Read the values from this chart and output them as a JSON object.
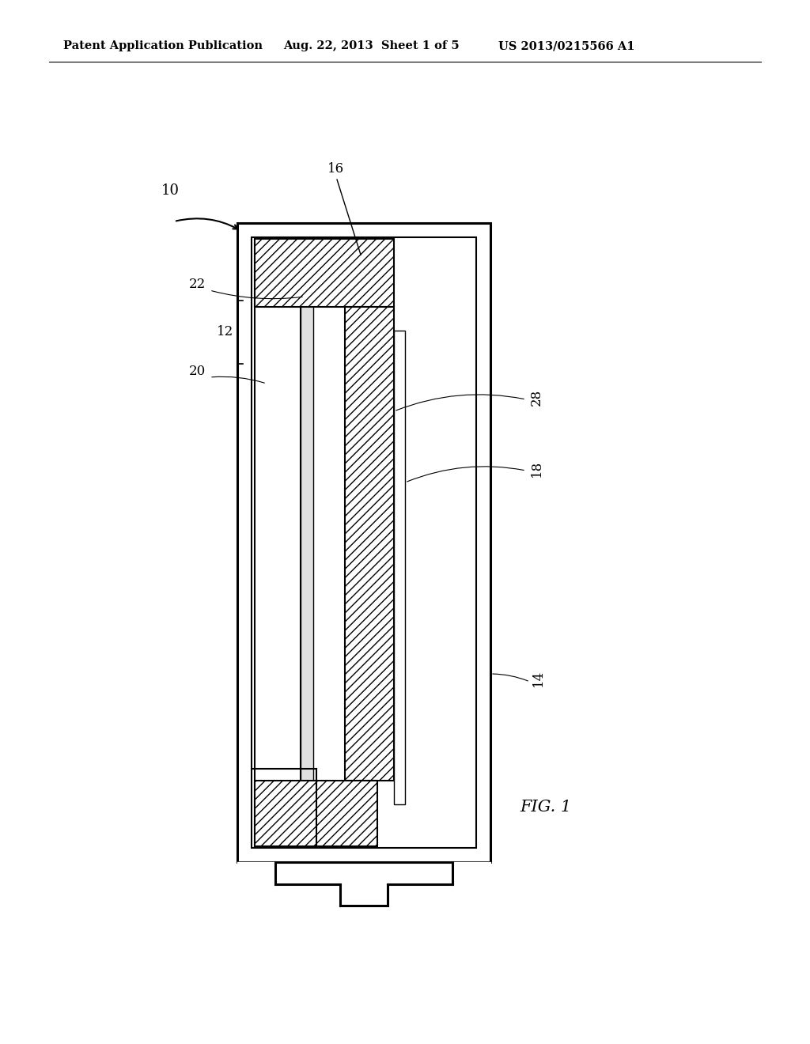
{
  "bg_color": "#ffffff",
  "line_color": "#000000",
  "header_left": "Patent Application Publication",
  "header_mid": "Aug. 22, 2013  Sheet 1 of 5",
  "header_right": "US 2013/0215566 A1",
  "fig_label": "FIG. 1",
  "label_10": "10",
  "label_12": "12",
  "label_14": "14",
  "label_16": "16",
  "label_18": "18",
  "label_20": "20",
  "label_22": "22",
  "label_28": "28",
  "lw_outer": 2.2,
  "lw_inner": 1.5,
  "lw_thin": 1.0
}
